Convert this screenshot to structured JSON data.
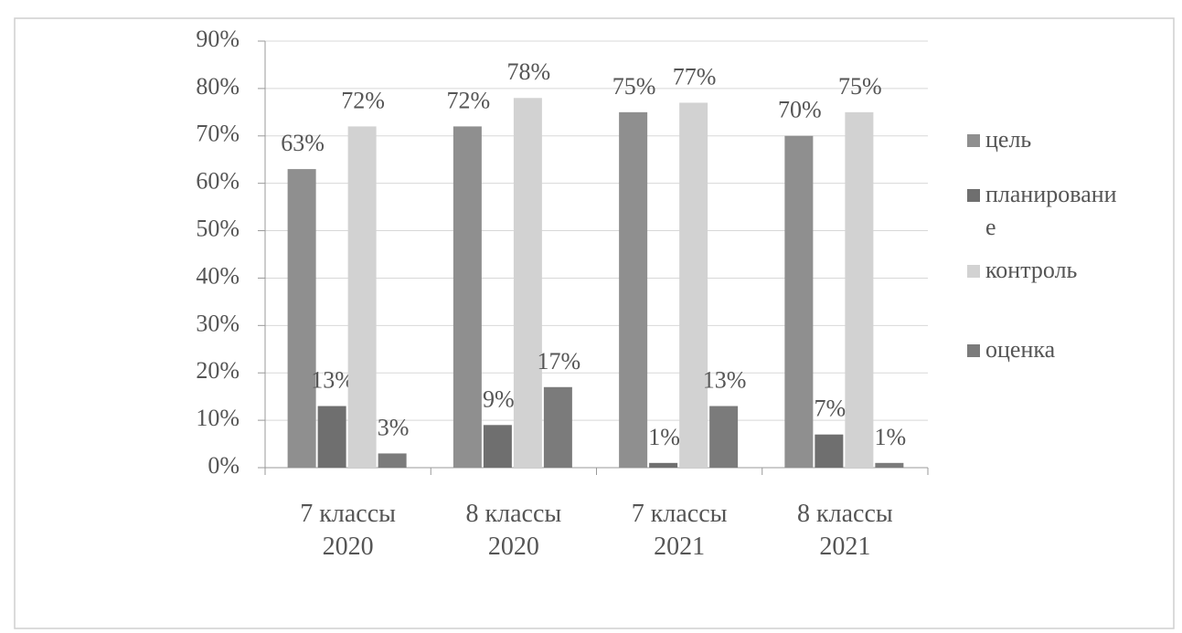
{
  "chart_data": {
    "type": "bar",
    "categories": [
      "7 классы 2020",
      "8 классы 2020",
      "7 классы 2021",
      "8 классы 2021"
    ],
    "series": [
      {
        "name": "цель",
        "color": "#8f8f8f",
        "values": [
          63,
          72,
          75,
          70
        ],
        "value_labels": [
          "63%",
          "72%",
          "75%",
          "70%"
        ]
      },
      {
        "name": "планирование",
        "color": "#6f6f6f",
        "values": [
          13,
          9,
          1,
          7
        ],
        "value_labels": [
          "13%",
          "9%",
          "1%",
          "7%"
        ]
      },
      {
        "name": "контроль",
        "color": "#d2d2d2",
        "values": [
          72,
          78,
          77,
          75
        ],
        "value_labels": [
          "72%",
          "78%",
          "77%",
          "75%"
        ]
      },
      {
        "name": "оценка",
        "color": "#7b7b7b",
        "values": [
          3,
          17,
          13,
          1
        ],
        "value_labels": [
          "3%",
          "17%",
          "13%",
          "1%"
        ]
      }
    ],
    "ylim": [
      0,
      90
    ],
    "yticks": [
      {
        "value": 0,
        "label": "0%"
      },
      {
        "value": 10,
        "label": "10%"
      },
      {
        "value": 20,
        "label": "20%"
      },
      {
        "value": 30,
        "label": "30%"
      },
      {
        "value": 40,
        "label": "40%"
      },
      {
        "value": 50,
        "label": "50%"
      },
      {
        "value": 60,
        "label": "60%"
      },
      {
        "value": 70,
        "label": "70%"
      },
      {
        "value": 80,
        "label": "80%"
      },
      {
        "value": 90,
        "label": "90%"
      }
    ],
    "grid": true,
    "legend": "right"
  }
}
